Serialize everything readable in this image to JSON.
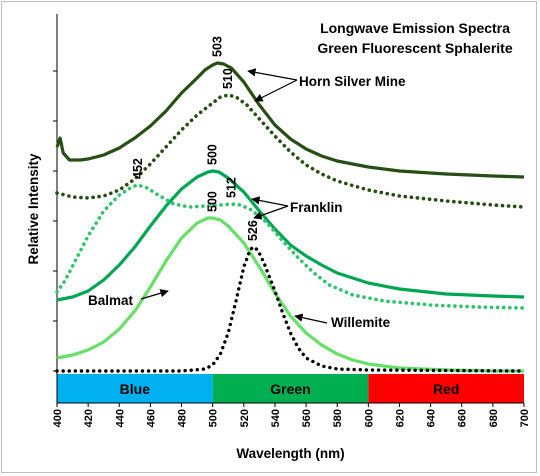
{
  "chart_data": {
    "type": "line",
    "title_lines": [
      "Longwave Emission Spectra",
      "Green Fluorescent Sphalerite"
    ],
    "xlabel": "Wavelength (nm)",
    "ylabel": "Relative Intensity",
    "xlim": [
      400,
      700
    ],
    "ylim": [
      0,
      320
    ],
    "x_ticks": [
      "400",
      "420",
      "440",
      "460",
      "480",
      "500",
      "520",
      "540",
      "560",
      "580",
      "600",
      "620",
      "640",
      "660",
      "680",
      "700"
    ],
    "y_tick_values": [
      0,
      50,
      100,
      150,
      200,
      250,
      300
    ],
    "grid": false,
    "bands": [
      {
        "label": "Blue",
        "x0": 400,
        "x1": 500,
        "color": "#00b0f0"
      },
      {
        "label": "Green",
        "x0": 500,
        "x1": 600,
        "color": "#00b050"
      },
      {
        "label": "Red",
        "x0": 600,
        "x1": 700,
        "color": "#ff0000"
      }
    ],
    "series": [
      {
        "id": "horn-solid",
        "color": "#274e13",
        "dash": "solid",
        "width": 3.2,
        "points": [
          [
            400,
            224
          ],
          [
            402,
            233
          ],
          [
            404,
            218
          ],
          [
            408,
            211
          ],
          [
            415,
            211
          ],
          [
            420,
            212
          ],
          [
            430,
            216
          ],
          [
            440,
            223
          ],
          [
            450,
            233
          ],
          [
            460,
            245
          ],
          [
            470,
            260
          ],
          [
            480,
            278
          ],
          [
            490,
            293
          ],
          [
            495,
            301
          ],
          [
            500,
            306
          ],
          [
            503,
            308
          ],
          [
            507,
            307
          ],
          [
            512,
            303
          ],
          [
            520,
            289
          ],
          [
            530,
            266
          ],
          [
            540,
            246
          ],
          [
            550,
            232
          ],
          [
            560,
            222
          ],
          [
            570,
            215
          ],
          [
            580,
            210
          ],
          [
            600,
            204
          ],
          [
            620,
            200
          ],
          [
            650,
            197
          ],
          [
            680,
            195
          ],
          [
            700,
            194
          ]
        ]
      },
      {
        "id": "horn-dotted",
        "color": "#274e13",
        "dash": "dotted",
        "width": 3.2,
        "points": [
          [
            400,
            178
          ],
          [
            410,
            174
          ],
          [
            420,
            173
          ],
          [
            430,
            175
          ],
          [
            440,
            181
          ],
          [
            450,
            192
          ],
          [
            460,
            207
          ],
          [
            470,
            224
          ],
          [
            480,
            241
          ],
          [
            490,
            256
          ],
          [
            500,
            268
          ],
          [
            505,
            274
          ],
          [
            510,
            276
          ],
          [
            515,
            274
          ],
          [
            522,
            266
          ],
          [
            530,
            252
          ],
          [
            540,
            235
          ],
          [
            550,
            219
          ],
          [
            560,
            206
          ],
          [
            570,
            197
          ],
          [
            580,
            190
          ],
          [
            600,
            181
          ],
          [
            620,
            175
          ],
          [
            650,
            170
          ],
          [
            680,
            166
          ],
          [
            700,
            164
          ]
        ]
      },
      {
        "id": "franklin-solid",
        "color": "#00a651",
        "dash": "solid",
        "width": 3.2,
        "points": [
          [
            400,
            71
          ],
          [
            410,
            74
          ],
          [
            420,
            80
          ],
          [
            430,
            91
          ],
          [
            440,
            106
          ],
          [
            450,
            124
          ],
          [
            460,
            145
          ],
          [
            470,
            165
          ],
          [
            480,
            182
          ],
          [
            490,
            194
          ],
          [
            497,
            199
          ],
          [
            500,
            200
          ],
          [
            504,
            199
          ],
          [
            510,
            193
          ],
          [
            520,
            179
          ],
          [
            530,
            160
          ],
          [
            540,
            142
          ],
          [
            550,
            126
          ],
          [
            560,
            115
          ],
          [
            570,
            106
          ],
          [
            580,
            98
          ],
          [
            600,
            88
          ],
          [
            620,
            82
          ],
          [
            650,
            77
          ],
          [
            680,
            75
          ],
          [
            700,
            74
          ]
        ]
      },
      {
        "id": "franklin-dotted",
        "color": "#2ec46a",
        "dash": "dotted",
        "width": 3.2,
        "points": [
          [
            400,
            79
          ],
          [
            405,
            90
          ],
          [
            410,
            105
          ],
          [
            420,
            135
          ],
          [
            430,
            160
          ],
          [
            440,
            176
          ],
          [
            448,
            184
          ],
          [
            452,
            186
          ],
          [
            458,
            183
          ],
          [
            465,
            176
          ],
          [
            475,
            167
          ],
          [
            485,
            164
          ],
          [
            495,
            165
          ],
          [
            505,
            166
          ],
          [
            512,
            167
          ],
          [
            518,
            166
          ],
          [
            525,
            161
          ],
          [
            535,
            148
          ],
          [
            545,
            130
          ],
          [
            555,
            113
          ],
          [
            565,
            98
          ],
          [
            575,
            86
          ],
          [
            590,
            76
          ],
          [
            610,
            70
          ],
          [
            640,
            66
          ],
          [
            670,
            64
          ],
          [
            700,
            63
          ]
        ]
      },
      {
        "id": "balmat",
        "color": "#66e066",
        "dash": "solid",
        "width": 3.2,
        "points": [
          [
            400,
            13
          ],
          [
            410,
            16
          ],
          [
            420,
            21
          ],
          [
            430,
            29
          ],
          [
            440,
            42
          ],
          [
            450,
            60
          ],
          [
            460,
            84
          ],
          [
            470,
            110
          ],
          [
            480,
            133
          ],
          [
            490,
            148
          ],
          [
            497,
            153
          ],
          [
            500,
            153
          ],
          [
            505,
            151
          ],
          [
            510,
            145
          ],
          [
            520,
            128
          ],
          [
            530,
            104
          ],
          [
            540,
            78
          ],
          [
            550,
            55
          ],
          [
            560,
            38
          ],
          [
            570,
            26
          ],
          [
            580,
            17
          ],
          [
            590,
            11
          ],
          [
            600,
            7
          ],
          [
            620,
            3
          ],
          [
            650,
            1
          ],
          [
            680,
            0
          ],
          [
            700,
            0
          ]
        ]
      },
      {
        "id": "willemite",
        "color": "#000000",
        "dash": "dotted",
        "width": 3.0,
        "points": [
          [
            400,
            0
          ],
          [
            480,
            0
          ],
          [
            495,
            2
          ],
          [
            500,
            6
          ],
          [
            505,
            17
          ],
          [
            510,
            38
          ],
          [
            515,
            70
          ],
          [
            520,
            104
          ],
          [
            524,
            121
          ],
          [
            526,
            124
          ],
          [
            529,
            121
          ],
          [
            533,
            108
          ],
          [
            540,
            80
          ],
          [
            545,
            58
          ],
          [
            550,
            38
          ],
          [
            555,
            23
          ],
          [
            560,
            13
          ],
          [
            570,
            5
          ],
          [
            580,
            2
          ],
          [
            600,
            1
          ],
          [
            700,
            0
          ]
        ]
      }
    ],
    "annotations": {
      "peak_labels": [
        {
          "text": "503",
          "x": 503,
          "y": 308
        },
        {
          "text": "510",
          "x": 510,
          "y": 276
        },
        {
          "text": "452",
          "x": 452,
          "y": 186
        },
        {
          "text": "500",
          "x": 500,
          "y": 200
        },
        {
          "text": "512",
          "x": 512,
          "y": 167
        },
        {
          "text": "500",
          "x": 500,
          "y": 153
        },
        {
          "text": "526",
          "x": 526,
          "y": 124
        }
      ],
      "labels": [
        {
          "text": "Horn Silver Mine",
          "x": 558,
          "y": 284
        },
        {
          "text": "Franklin",
          "x": 551,
          "y": 172
        },
        {
          "text": "Balmat",
          "x": 418,
          "y": 72
        },
        {
          "text": "Willemite",
          "x": 573,
          "y": 54
        }
      ]
    }
  }
}
